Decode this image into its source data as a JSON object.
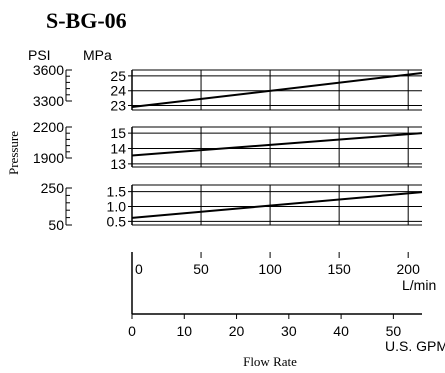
{
  "title": "S-BG-06",
  "unit_labels": {
    "psi": "PSI",
    "mpa": "MPa"
  },
  "ylabel": "Pressure",
  "xlabel": "Flow Rate",
  "x_unit_lmin": "L/min",
  "x_unit_gpm": "U.S. GPM",
  "chart_data": {
    "type": "line",
    "title": "S-BG-06",
    "xlabel": "Flow Rate",
    "ylabel": "Pressure",
    "x_lmin_ticks": [
      0,
      50,
      100,
      150,
      200
    ],
    "x_gpm_ticks": [
      0,
      10,
      20,
      30,
      40,
      50
    ],
    "x_lmin_range": [
      0,
      210
    ],
    "panels": [
      {
        "mpa_ticks": [
          "25",
          "24",
          "23"
        ],
        "mpa_tick_values": [
          25,
          24,
          23
        ],
        "mpa_range": [
          22.7,
          25.4
        ],
        "psi_ticks": [
          "3600",
          "3300"
        ],
        "psi_tick_values": [
          3600,
          3300
        ],
        "psi_range": [
          3300,
          3600
        ],
        "x": [
          0,
          210
        ],
        "y": [
          22.9,
          25.2
        ]
      },
      {
        "mpa_ticks": [
          "15",
          "14",
          "13"
        ],
        "mpa_tick_values": [
          15,
          14,
          13
        ],
        "mpa_range": [
          12.8,
          15.4
        ],
        "psi_ticks": [
          "2200",
          "1900"
        ],
        "psi_tick_values": [
          2200,
          1900
        ],
        "psi_range": [
          1900,
          2200
        ],
        "x": [
          0,
          210
        ],
        "y": [
          13.55,
          15.0
        ]
      },
      {
        "mpa_ticks": [
          "1.5",
          "1.0",
          "0.5"
        ],
        "mpa_tick_values": [
          1.5,
          1.0,
          0.5
        ],
        "mpa_range": [
          0.38,
          1.72
        ],
        "psi_ticks": [
          "250",
          "50"
        ],
        "psi_tick_values": [
          250,
          50
        ],
        "psi_range": [
          50,
          250
        ],
        "x": [
          0,
          210
        ],
        "y": [
          0.62,
          1.48
        ]
      }
    ]
  }
}
